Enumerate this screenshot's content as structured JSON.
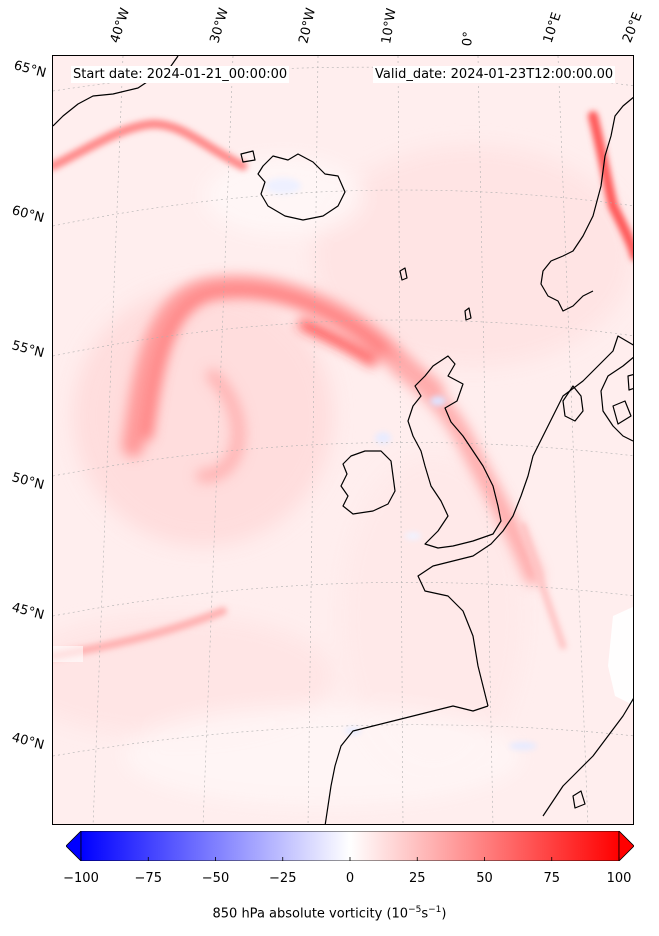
{
  "header": {
    "start_date": "Start date: 2024-01-21_00:00:00",
    "valid_date": "Valid_date: 2024-01-23T12:00:00.00"
  },
  "longitude_labels": [
    "40°W",
    "30°W",
    "20°W",
    "10°W",
    "0°",
    "10°E",
    "20°E"
  ],
  "latitude_labels": [
    "65°N",
    "60°N",
    "55°N",
    "50°N",
    "45°N",
    "40°N"
  ],
  "colorbar": {
    "title_main": "850 hPa absolute vorticity (10",
    "title_exp1": "−5",
    "title_mid": "s",
    "title_exp2": "−1",
    "title_end": ")",
    "ticks": [
      "−100",
      "−75",
      "−50",
      "−25",
      "0",
      "25",
      "50",
      "75",
      "100"
    ],
    "min": -100,
    "max": 100,
    "low_color": "#0000ff",
    "mid_color": "#ffffff",
    "high_color": "#ff0000"
  },
  "colors": {
    "background_field": "#fff1f1",
    "coastline": "#000000",
    "gridline": "#b0b0b0"
  }
}
